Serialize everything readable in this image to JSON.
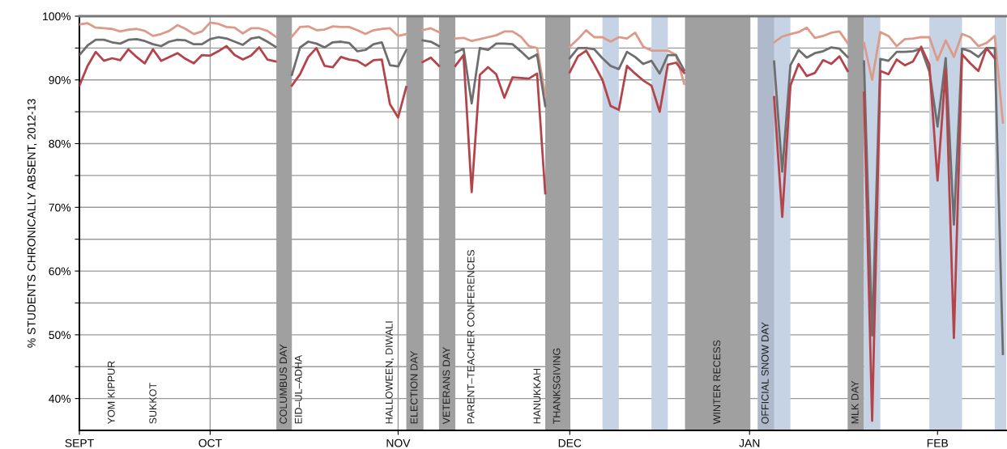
{
  "chart_data": {
    "type": "line",
    "ylabel": "% STUDENTS CHRONICALLY ABSENT, 2012-13",
    "categories": [
      "SEPT",
      null,
      null,
      null,
      null,
      null,
      null,
      null,
      null,
      null,
      null,
      null,
      null,
      null,
      null,
      null,
      "OCT",
      null,
      null,
      null,
      null,
      null,
      null,
      null,
      null,
      null,
      null,
      null,
      null,
      null,
      null,
      null,
      null,
      null,
      null,
      null,
      null,
      null,
      null,
      "NOV",
      null,
      null,
      null,
      null,
      null,
      null,
      null,
      null,
      null,
      null,
      null,
      null,
      null,
      null,
      null,
      null,
      null,
      null,
      null,
      null,
      "DEC",
      null,
      null,
      null,
      null,
      null,
      null,
      null,
      null,
      null,
      null,
      null,
      null,
      null,
      null,
      null,
      null,
      null,
      null,
      null,
      null,
      null,
      "JAN",
      null,
      null,
      null,
      null,
      null,
      null,
      null,
      null,
      null,
      null,
      null,
      null,
      null,
      null,
      null,
      null,
      null,
      null,
      null,
      null,
      null,
      null,
      "FEB",
      null,
      null,
      null,
      null,
      null,
      null,
      null,
      null
    ],
    "series": [
      {
        "color": "#dd9a88",
        "values": [
          98.7,
          98.9,
          98.2,
          98.1,
          98.0,
          97.6,
          97.9,
          98.0,
          97.7,
          96.9,
          97.2,
          97.7,
          98.6,
          98.0,
          97.2,
          97.6,
          99.0,
          98.8,
          98.3,
          98.2,
          97.3,
          98.1,
          98.1,
          97.7,
          96.8,
          null,
          96.8,
          98.3,
          98.4,
          97.8,
          97.9,
          98.4,
          98.3,
          98.3,
          97.8,
          97.2,
          97.8,
          98.0,
          98.1,
          96.9,
          97.2,
          null,
          97.8,
          98.1,
          97.5,
          null,
          96.5,
          96.6,
          96.1,
          96.4,
          96.7,
          97.0,
          97.6,
          97.6,
          96.8,
          95.3,
          95.0,
          87.7,
          null,
          null,
          95.2,
          96.4,
          97.8,
          96.7,
          96.7,
          96.0,
          96.7,
          96.5,
          97.4,
          95.2,
          94.6,
          94.6,
          94.6,
          93.9,
          89.4,
          null,
          null,
          null,
          null,
          null,
          null,
          null,
          null,
          null,
          null,
          95.9,
          96.8,
          97.2,
          97.5,
          98.2,
          96.6,
          96.9,
          97.4,
          97.6,
          95.8,
          null,
          95.8,
          90.0,
          97.5,
          96.9,
          95.3,
          96.4,
          96.5,
          96.7,
          96.7,
          93.1,
          96.2,
          93.6,
          97.2,
          96.7,
          95.3,
          95.8,
          96.9,
          83.3
        ]
      },
      {
        "color": "#6e6e6e",
        "values": [
          93.9,
          95.4,
          96.3,
          96.3,
          95.9,
          95.7,
          96.3,
          96.4,
          96.1,
          95.6,
          95.3,
          96.0,
          96.3,
          96.2,
          95.6,
          95.6,
          96.4,
          96.7,
          96.5,
          96.0,
          95.5,
          96.5,
          96.7,
          96.0,
          95.2,
          null,
          90.8,
          95.1,
          96.0,
          95.7,
          95.1,
          95.9,
          96.0,
          95.8,
          94.5,
          94.7,
          95.6,
          95.9,
          92.3,
          92.1,
          94.7,
          null,
          96.2,
          96.0,
          95.3,
          null,
          94.3,
          94.9,
          86.3,
          95.0,
          94.7,
          95.7,
          95.7,
          95.6,
          94.5,
          93.3,
          94.0,
          85.9,
          null,
          null,
          93.4,
          95.0,
          95.0,
          94.8,
          93.4,
          92.2,
          91.7,
          94.4,
          93.6,
          92.5,
          93.0,
          91.0,
          93.9,
          93.9,
          91.5,
          null,
          null,
          null,
          null,
          null,
          null,
          null,
          null,
          null,
          null,
          92.9,
          75.6,
          92.3,
          94.7,
          93.5,
          94.2,
          94.5,
          95.1,
          94.9,
          93.6,
          null,
          92.9,
          49.9,
          93.3,
          93.0,
          94.4,
          94.4,
          94.5,
          94.9,
          91.3,
          82.7,
          93.4,
          67.3,
          94.9,
          94.5,
          93.6,
          95.0,
          95.0,
          47.0
        ]
      },
      {
        "color": "#b5444a",
        "values": [
          89.1,
          92.2,
          94.4,
          93.0,
          93.4,
          93.1,
          94.8,
          93.6,
          92.6,
          94.8,
          93.0,
          93.6,
          94.2,
          93.3,
          92.6,
          93.9,
          93.8,
          94.5,
          95.3,
          93.9,
          93.2,
          93.8,
          95.1,
          93.2,
          92.9,
          null,
          89.1,
          90.9,
          93.6,
          95.0,
          92.2,
          92.0,
          93.6,
          93.2,
          93.0,
          92.2,
          93.1,
          93.2,
          86.2,
          84.1,
          88.9,
          null,
          92.8,
          93.5,
          92.2,
          null,
          92.2,
          93.9,
          72.4,
          90.8,
          92.0,
          90.9,
          87.2,
          90.4,
          90.3,
          90.2,
          91.0,
          72.2,
          null,
          null,
          91.2,
          93.7,
          94.6,
          92.4,
          90.0,
          85.9,
          85.3,
          92.2,
          91.0,
          89.9,
          89.1,
          85.0,
          92.4,
          92.7,
          91.1,
          null,
          null,
          null,
          null,
          null,
          null,
          null,
          null,
          null,
          null,
          87.3,
          68.5,
          89.1,
          92.5,
          90.6,
          91.1,
          93.1,
          92.5,
          93.7,
          91.4,
          null,
          88.0,
          36.5,
          91.4,
          90.9,
          93.2,
          92.3,
          92.9,
          95.2,
          92.4,
          74.2,
          91.7,
          49.5,
          94.0,
          92.6,
          91.4,
          95.0,
          93.4,
          null
        ]
      }
    ],
    "ylim": [
      35,
      100
    ],
    "yticks": [
      {
        "value": 40,
        "label": "40%"
      },
      {
        "value": 45,
        "label": null
      },
      {
        "value": 50,
        "label": "50%"
      },
      {
        "value": 55,
        "label": null
      },
      {
        "value": 60,
        "label": "60%"
      },
      {
        "value": 65,
        "label": null
      },
      {
        "value": 70,
        "label": "70%"
      },
      {
        "value": 75,
        "label": null
      },
      {
        "value": 80,
        "label": "80%"
      },
      {
        "value": 85,
        "label": null
      },
      {
        "value": 90,
        "label": "90%"
      },
      {
        "value": 95,
        "label": null
      },
      {
        "value": 100,
        "label": "100%"
      }
    ],
    "grid": true,
    "legend": false,
    "annotations": [
      "YOM KIPPUR",
      "SUKKOT",
      "COLUMBUS DAY",
      "EID–UL–ADHA",
      "HALLOWEEN, DIWALI",
      "ELECTION DAY",
      "VETERANS DAY",
      "PARENT–TEACHER CONFERENCES",
      "HANUKKAH",
      "THANKSGIVING",
      "WINTER RECESS",
      "OFFICIAL SNOW DAY",
      "MLK DAY"
    ]
  }
}
